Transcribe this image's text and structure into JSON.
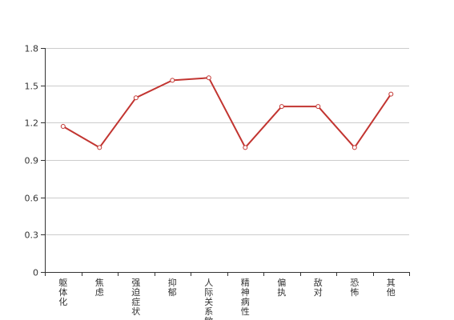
{
  "chart_data": {
    "type": "line",
    "title": "",
    "xlabel": "",
    "ylabel": "",
    "categories": [
      "躯体化",
      "焦虑",
      "强迫症状",
      "抑郁",
      "人际关系敏感",
      "精神病性",
      "偏执",
      "敌对",
      "恐怖",
      "其他"
    ],
    "series": [
      {
        "values": [
          1.17,
          1.0,
          1.4,
          1.54,
          1.56,
          1.0,
          1.33,
          1.33,
          1.0,
          1.43
        ],
        "color": "#c23531"
      }
    ],
    "ylim": [
      0,
      1.8
    ],
    "yticks": [
      "0",
      "0.3",
      "0.6",
      "0.9",
      "1.2",
      "1.5",
      "1.8"
    ],
    "grid": true,
    "legend": "none"
  }
}
